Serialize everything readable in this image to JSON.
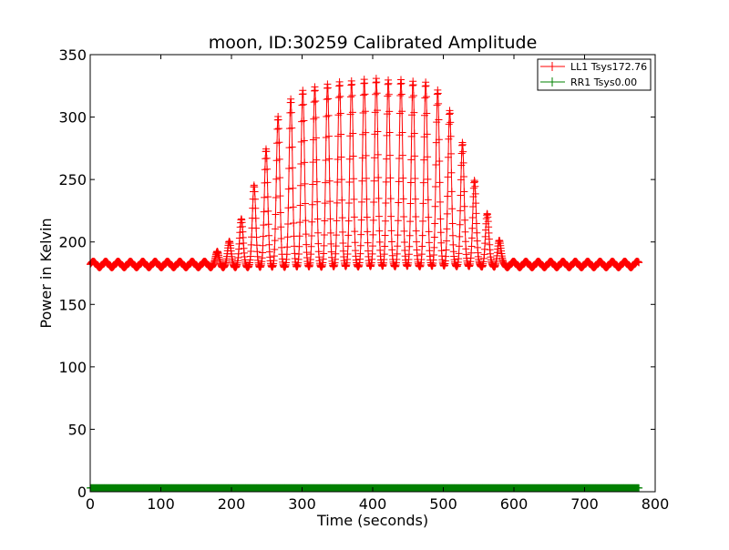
{
  "chart_data": {
    "type": "line",
    "title": "moon, ID:30259 Calibrated Amplitude",
    "xlabel": "Time (seconds)",
    "ylabel": "Power in Kelvin",
    "xlim": [
      0,
      800
    ],
    "ylim": [
      0,
      350
    ],
    "xticks": [
      0,
      100,
      200,
      300,
      400,
      500,
      600,
      700,
      800
    ],
    "yticks": [
      0,
      50,
      100,
      150,
      200,
      250,
      300,
      350
    ],
    "grid": false,
    "legend_position": "top-right",
    "sample_spacing_seconds": 0.5,
    "baseline": 182,
    "scan_model": {
      "scan_period_seconds": 17.5,
      "baseline_ripple_amplitude": 2.5,
      "scan_peak_times": [
        180,
        197,
        214,
        232,
        249,
        266,
        284,
        301,
        318,
        336,
        353,
        370,
        388,
        405,
        422,
        440,
        457,
        475,
        492,
        509,
        527,
        544,
        562,
        579
      ],
      "scan_peak_values": [
        190,
        198,
        216,
        243,
        272,
        298,
        312,
        319,
        322,
        324,
        326,
        327,
        328,
        329,
        328,
        328,
        327,
        326,
        320,
        304,
        278,
        248,
        221,
        200
      ]
    },
    "series": [
      {
        "name": "LL1 Tsys172.76",
        "color": "#ff0000",
        "x_start": 0,
        "x_end": 777
      },
      {
        "name": "RR1 Tsys0.00",
        "color": "#008000",
        "x_start": 0,
        "x_end": 777,
        "value": 3
      }
    ]
  }
}
